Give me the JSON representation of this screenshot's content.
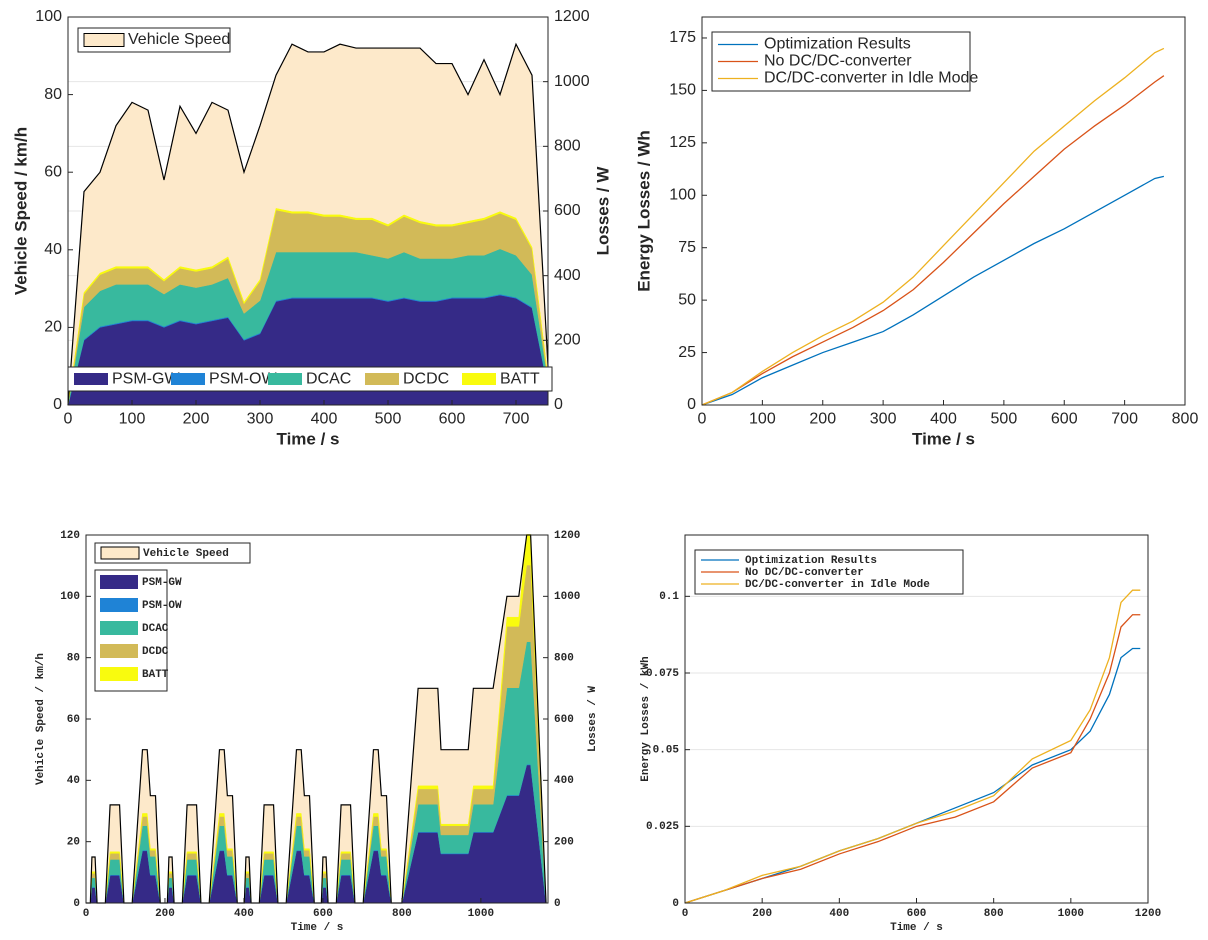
{
  "chart_data": [
    {
      "type": "area",
      "stacked": true,
      "xlabel": "Time / s",
      "ylabel": "Vehicle Speed / km/h",
      "y2label": "Losses / W",
      "xlim": [
        0,
        750
      ],
      "xticks": [
        0,
        100,
        200,
        300,
        400,
        500,
        600,
        700
      ],
      "ylim": [
        0,
        100
      ],
      "yticks": [
        0,
        20,
        40,
        60,
        80,
        100
      ],
      "y2lim": [
        0,
        1200
      ],
      "y2ticks": [
        0,
        200,
        400,
        600,
        800,
        1000,
        1200
      ],
      "grid": true,
      "x": [
        0,
        25,
        50,
        75,
        100,
        125,
        150,
        175,
        200,
        225,
        250,
        275,
        300,
        325,
        350,
        375,
        400,
        425,
        450,
        475,
        500,
        525,
        550,
        575,
        600,
        625,
        650,
        675,
        700,
        725,
        750
      ],
      "series": [
        {
          "name": "Vehicle Speed",
          "color": "#fde9ca",
          "values": [
            0,
            55,
            60,
            72,
            78,
            76,
            58,
            77,
            70,
            78,
            76,
            60,
            72,
            85,
            93,
            91,
            91,
            93,
            92,
            92,
            92,
            92,
            92,
            88,
            88,
            80,
            89,
            80,
            93,
            85,
            10
          ]
        },
        {
          "name": "PSM-GW",
          "color": "#352a87",
          "axis": "y2",
          "values": [
            0,
            200,
            240,
            250,
            260,
            260,
            240,
            260,
            250,
            260,
            270,
            200,
            220,
            320,
            330,
            330,
            330,
            330,
            330,
            330,
            320,
            330,
            320,
            320,
            330,
            330,
            330,
            340,
            330,
            300,
            50
          ]
        },
        {
          "name": "PSM-OW",
          "color": "#1f83d6",
          "axis": "y2",
          "values": [
            0,
            3,
            3,
            3,
            3,
            3,
            3,
            3,
            3,
            3,
            3,
            3,
            3,
            3,
            3,
            3,
            3,
            3,
            3,
            3,
            3,
            3,
            3,
            3,
            3,
            3,
            3,
            3,
            3,
            3,
            3
          ]
        },
        {
          "name": "DCAC",
          "color": "#38b99e",
          "axis": "y2",
          "values": [
            0,
            100,
            110,
            120,
            110,
            110,
            100,
            110,
            110,
            110,
            120,
            80,
            100,
            150,
            140,
            140,
            140,
            140,
            140,
            130,
            130,
            140,
            130,
            130,
            120,
            130,
            130,
            140,
            130,
            100,
            20
          ]
        },
        {
          "name": "DCDC",
          "color": "#d2ba58",
          "axis": "y2",
          "values": [
            0,
            40,
            50,
            50,
            50,
            50,
            40,
            50,
            50,
            50,
            60,
            30,
            60,
            130,
            120,
            120,
            110,
            110,
            100,
            110,
            100,
            110,
            110,
            100,
            100,
            100,
            110,
            110,
            110,
            80,
            10
          ]
        },
        {
          "name": "BATT",
          "color": "#f9fb0e",
          "axis": "y2",
          "values": [
            0,
            5,
            5,
            5,
            5,
            5,
            5,
            5,
            5,
            5,
            5,
            5,
            5,
            5,
            5,
            5,
            5,
            5,
            5,
            5,
            5,
            5,
            5,
            5,
            5,
            5,
            5,
            5,
            5,
            5,
            0
          ]
        }
      ]
    },
    {
      "type": "line",
      "xlabel": "Time / s",
      "ylabel": "Energy Losses / Wh",
      "legend": "upper left",
      "grid": false,
      "xlim": [
        0,
        800
      ],
      "xticks": [
        0,
        100,
        200,
        300,
        400,
        500,
        600,
        700,
        800
      ],
      "ylim": [
        0,
        185
      ],
      "yticks": [
        0,
        25,
        50,
        75,
        100,
        125,
        150,
        175
      ],
      "x": [
        0,
        50,
        100,
        150,
        200,
        250,
        300,
        350,
        400,
        450,
        500,
        550,
        600,
        650,
        700,
        750,
        765
      ],
      "series": [
        {
          "name": "Optimization Results",
          "color": "#0072bd",
          "values": [
            0,
            5,
            13,
            19,
            25,
            30,
            35,
            43,
            52,
            61,
            69,
            77,
            84,
            92,
            100,
            108,
            109
          ]
        },
        {
          "name": "No DC/DC-converter",
          "color": "#d95319",
          "values": [
            0,
            6,
            15,
            23,
            30,
            37,
            45,
            55,
            68,
            82,
            96,
            109,
            122,
            133,
            143,
            154,
            157
          ]
        },
        {
          "name": "DC/DC-converter in Idle Mode",
          "color": "#edb120",
          "values": [
            0,
            6,
            16,
            25,
            33,
            40,
            49,
            61,
            76,
            91,
            106,
            121,
            133,
            145,
            156,
            168,
            170
          ]
        }
      ]
    },
    {
      "type": "area",
      "stacked": true,
      "xlabel": "Time / s",
      "ylabel": "Vehicle Speed / km/h",
      "y2label": "Losses / W",
      "xlim": [
        0,
        1170
      ],
      "xticks": [
        0,
        200,
        400,
        600,
        800,
        1000
      ],
      "ylim": [
        0,
        120
      ],
      "yticks": [
        0,
        20,
        40,
        60,
        80,
        100,
        120
      ],
      "y2lim": [
        0,
        1200
      ],
      "y2ticks": [
        0,
        200,
        400,
        600,
        800,
        1000,
        1200
      ],
      "grid": false,
      "x": [
        0,
        11,
        15,
        23,
        28,
        49,
        61,
        85,
        96,
        117,
        143,
        155,
        163,
        176,
        188,
        195,
        206,
        210,
        218,
        223,
        244,
        256,
        280,
        291,
        312,
        338,
        350,
        358,
        371,
        383,
        390,
        401,
        405,
        413,
        418,
        439,
        451,
        475,
        486,
        507,
        533,
        545,
        553,
        566,
        578,
        585,
        596,
        600,
        608,
        613,
        634,
        646,
        670,
        681,
        702,
        728,
        740,
        748,
        761,
        773,
        800,
        841,
        891,
        899,
        968,
        981,
        1031,
        1066,
        1096,
        1116,
        1126,
        1165
      ],
      "series": [
        {
          "name": "Vehicle Speed",
          "color": "#fde9ca",
          "values": [
            0,
            0,
            15,
            15,
            0,
            0,
            32,
            32,
            0,
            0,
            50,
            50,
            35,
            35,
            0,
            0,
            0,
            15,
            15,
            0,
            0,
            32,
            32,
            0,
            0,
            50,
            50,
            35,
            35,
            0,
            0,
            0,
            15,
            15,
            0,
            0,
            32,
            32,
            0,
            0,
            50,
            50,
            35,
            35,
            0,
            0,
            0,
            15,
            15,
            0,
            0,
            32,
            32,
            0,
            0,
            50,
            50,
            35,
            35,
            0,
            0,
            70,
            70,
            50,
            50,
            70,
            70,
            100,
            100,
            120,
            120,
            0
          ]
        },
        {
          "name": "PSM-GW",
          "color": "#352a87",
          "axis": "y2",
          "values": [
            0,
            0,
            50,
            50,
            0,
            0,
            90,
            90,
            0,
            0,
            170,
            170,
            90,
            90,
            0,
            0,
            0,
            50,
            50,
            0,
            0,
            90,
            90,
            0,
            0,
            170,
            170,
            90,
            90,
            0,
            0,
            0,
            50,
            50,
            0,
            0,
            90,
            90,
            0,
            0,
            170,
            170,
            90,
            90,
            0,
            0,
            0,
            50,
            50,
            0,
            0,
            90,
            90,
            0,
            0,
            170,
            170,
            90,
            90,
            0,
            0,
            230,
            230,
            160,
            160,
            230,
            230,
            350,
            350,
            450,
            450,
            0
          ]
        },
        {
          "name": "PSM-OW",
          "color": "#1f83d6",
          "axis": "y2",
          "values": [
            0,
            0,
            2,
            2,
            0,
            0,
            2,
            2,
            0,
            0,
            2,
            2,
            2,
            2,
            0,
            0,
            0,
            2,
            2,
            0,
            0,
            2,
            2,
            0,
            0,
            2,
            2,
            2,
            2,
            0,
            0,
            0,
            2,
            2,
            0,
            0,
            2,
            2,
            0,
            0,
            2,
            2,
            2,
            2,
            0,
            0,
            0,
            2,
            2,
            0,
            0,
            2,
            2,
            0,
            0,
            2,
            2,
            2,
            2,
            0,
            0,
            2,
            2,
            2,
            2,
            2,
            2,
            2,
            2,
            2,
            2,
            0
          ]
        },
        {
          "name": "DCAC",
          "color": "#38b99e",
          "axis": "y2",
          "values": [
            0,
            0,
            30,
            30,
            0,
            0,
            50,
            50,
            0,
            0,
            80,
            80,
            60,
            60,
            0,
            0,
            0,
            30,
            30,
            0,
            0,
            50,
            50,
            0,
            0,
            80,
            80,
            60,
            60,
            0,
            0,
            0,
            30,
            30,
            0,
            0,
            50,
            50,
            0,
            0,
            80,
            80,
            60,
            60,
            0,
            0,
            0,
            30,
            30,
            0,
            0,
            50,
            50,
            0,
            0,
            80,
            80,
            60,
            60,
            0,
            0,
            90,
            90,
            60,
            60,
            90,
            90,
            350,
            350,
            400,
            400,
            0
          ]
        },
        {
          "name": "DCDC",
          "color": "#d2ba58",
          "axis": "y2",
          "values": [
            0,
            0,
            15,
            15,
            0,
            0,
            20,
            20,
            0,
            0,
            30,
            30,
            20,
            20,
            0,
            0,
            0,
            15,
            15,
            0,
            0,
            20,
            20,
            0,
            0,
            30,
            30,
            20,
            20,
            0,
            0,
            0,
            15,
            15,
            0,
            0,
            20,
            20,
            0,
            0,
            30,
            30,
            20,
            20,
            0,
            0,
            0,
            15,
            15,
            0,
            0,
            20,
            20,
            0,
            0,
            30,
            30,
            20,
            20,
            0,
            0,
            50,
            50,
            30,
            30,
            50,
            50,
            200,
            200,
            250,
            250,
            0
          ]
        },
        {
          "name": "BATT",
          "color": "#f9fb0e",
          "axis": "y2",
          "values": [
            0,
            0,
            5,
            5,
            0,
            0,
            5,
            5,
            0,
            0,
            10,
            10,
            5,
            5,
            0,
            0,
            0,
            5,
            5,
            0,
            0,
            5,
            5,
            0,
            0,
            10,
            10,
            5,
            5,
            0,
            0,
            0,
            5,
            5,
            0,
            0,
            5,
            5,
            0,
            0,
            10,
            10,
            5,
            5,
            0,
            0,
            0,
            5,
            5,
            0,
            0,
            5,
            5,
            0,
            0,
            10,
            10,
            5,
            5,
            0,
            0,
            10,
            10,
            5,
            5,
            10,
            10,
            30,
            30,
            100,
            100,
            0
          ]
        }
      ]
    },
    {
      "type": "line",
      "xlabel": "Time / s",
      "ylabel": "Energy Losses / kWh",
      "legend": "upper left",
      "grid": true,
      "xlim": [
        0,
        1200
      ],
      "xticks": [
        0,
        200,
        400,
        600,
        800,
        1000,
        1200
      ],
      "ylim": [
        0,
        0.12
      ],
      "yticks": [
        0,
        0.025,
        0.05,
        0.075,
        0.1
      ],
      "x": [
        0,
        100,
        200,
        300,
        400,
        500,
        600,
        700,
        800,
        900,
        1000,
        1050,
        1100,
        1130,
        1160,
        1180
      ],
      "series": [
        {
          "name": "Optimization Results",
          "color": "#0072bd",
          "values": [
            0,
            0.004,
            0.008,
            0.012,
            0.017,
            0.021,
            0.026,
            0.031,
            0.036,
            0.045,
            0.05,
            0.056,
            0.068,
            0.08,
            0.083,
            0.083
          ]
        },
        {
          "name": "No DC/DC-converter",
          "color": "#d95319",
          "values": [
            0,
            0.004,
            0.008,
            0.011,
            0.016,
            0.02,
            0.025,
            0.028,
            0.033,
            0.044,
            0.049,
            0.06,
            0.075,
            0.09,
            0.094,
            0.094
          ]
        },
        {
          "name": "DC/DC-converter in Idle Mode",
          "color": "#edb120",
          "values": [
            0,
            0.004,
            0.009,
            0.012,
            0.017,
            0.021,
            0.026,
            0.03,
            0.035,
            0.047,
            0.053,
            0.063,
            0.08,
            0.098,
            0.102,
            0.102
          ]
        }
      ]
    }
  ]
}
